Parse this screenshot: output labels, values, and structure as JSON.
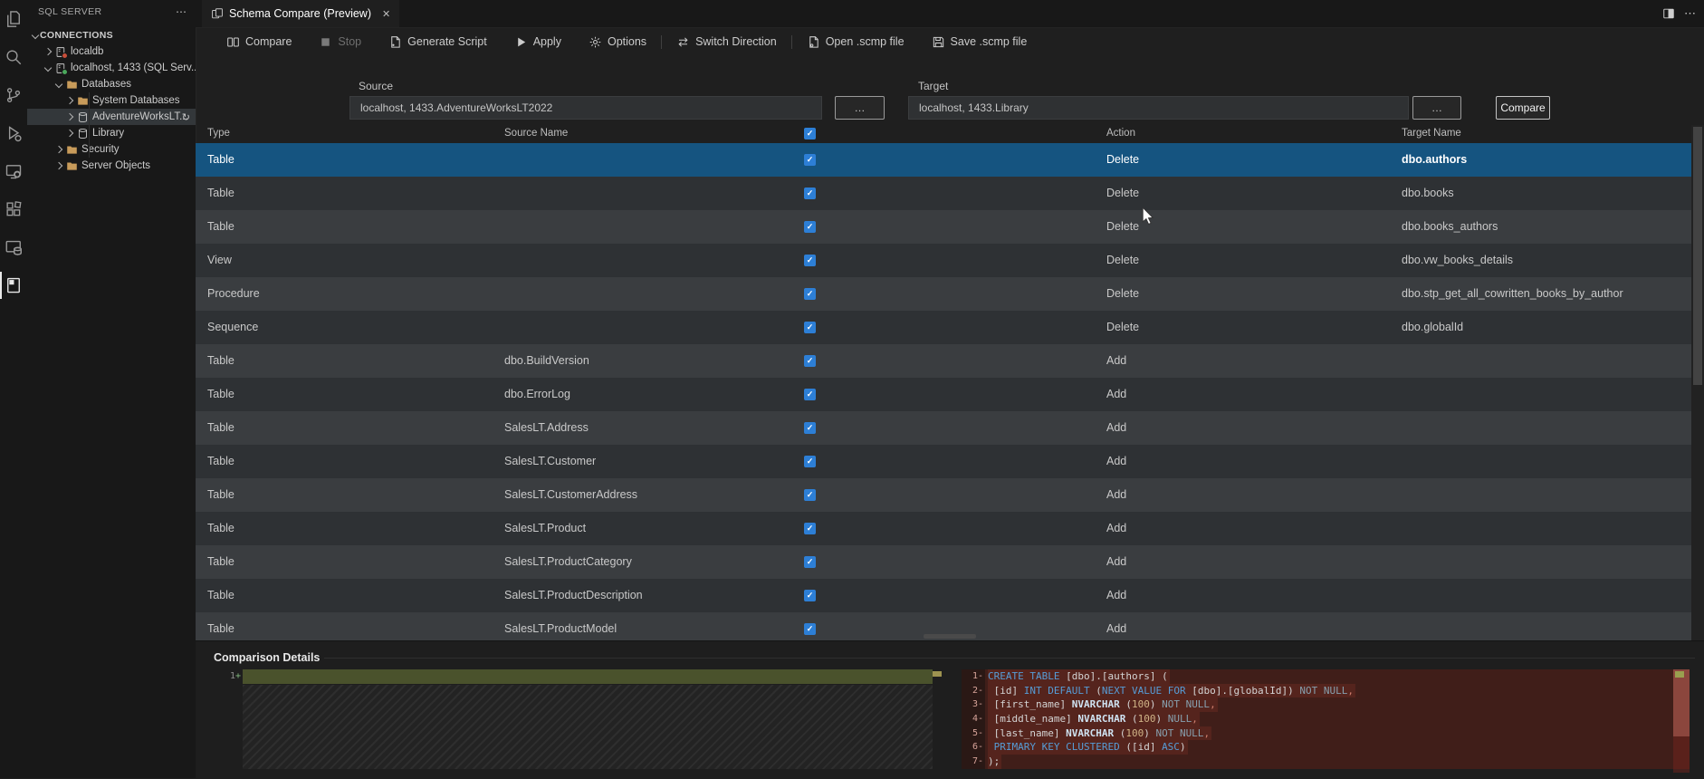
{
  "activity_bar": {
    "items": [
      {
        "icon": "explorer-icon",
        "active": false
      },
      {
        "icon": "search-icon",
        "active": false
      },
      {
        "icon": "source-control-icon",
        "active": false
      },
      {
        "icon": "run-debug-icon",
        "active": false
      },
      {
        "icon": "remote-explorer-icon",
        "active": false
      },
      {
        "icon": "extensions-icon",
        "active": false
      },
      {
        "icon": "mssql-icon",
        "active": false
      },
      {
        "icon": "database-projects-icon",
        "active": true
      }
    ]
  },
  "sidebar": {
    "title": "SQL SERVER",
    "more": "⋯",
    "tree": [
      {
        "kind": "section",
        "label": "CONNECTIONS",
        "chevron": "down"
      },
      {
        "level": 1,
        "chevron": "right",
        "icon": "server-icon",
        "badge": "#c84e3a",
        "label": "localdb"
      },
      {
        "level": 1,
        "chevron": "down",
        "icon": "server-icon",
        "badge": "#4aa85c",
        "label": "localhost, 1433 (SQL Serv..."
      },
      {
        "level": 2,
        "chevron": "down",
        "icon": "folder-icon",
        "label": "Databases"
      },
      {
        "level": 3,
        "chevron": "right",
        "icon": "folder-icon",
        "label": "System Databases"
      },
      {
        "level": 3,
        "chevron": "right",
        "icon": "database-icon",
        "label": "AdventureWorksLT...",
        "selected": true,
        "busy": "↻"
      },
      {
        "level": 3,
        "chevron": "right",
        "icon": "database-icon",
        "label": "Library"
      },
      {
        "level": 2,
        "chevron": "right",
        "icon": "folder-icon",
        "label": "Security"
      },
      {
        "level": 2,
        "chevron": "right",
        "icon": "folder-icon",
        "label": "Server Objects"
      }
    ]
  },
  "editor": {
    "tab": {
      "icon": "schema-compare-icon",
      "label": "Schema Compare (Preview)",
      "close": "✕"
    },
    "more": "⋯"
  },
  "toolbar": {
    "items": [
      {
        "icon": "compare-panes-icon",
        "label": "Compare"
      },
      {
        "icon": "stop-icon",
        "label": "Stop",
        "disabled": true
      },
      {
        "icon": "script-icon",
        "label": "Generate Script"
      },
      {
        "icon": "apply-icon",
        "label": "Apply"
      },
      {
        "icon": "options-icon",
        "label": "Options"
      },
      {
        "sep": true
      },
      {
        "icon": "switch-icon",
        "label": "Switch Direction"
      },
      {
        "sep": true
      },
      {
        "icon": "open-file-icon",
        "label": "Open .scmp file"
      },
      {
        "icon": "save-file-icon",
        "label": "Save .scmp file"
      }
    ]
  },
  "compare_setup": {
    "source_label": "Source",
    "source_value": "localhost, 1433.AdventureWorksLT2022",
    "target_label": "Target",
    "target_value": "localhost, 1433.Library",
    "browse_label": "…",
    "compare_button": "Compare"
  },
  "grid": {
    "columns": {
      "type": "Type",
      "source": "Source Name",
      "action": "Action",
      "target": "Target Name"
    },
    "header_checked": true,
    "rows": [
      {
        "type": "Table",
        "source": "",
        "checked": true,
        "action": "Delete",
        "target": "dbo.authors",
        "selected": true
      },
      {
        "type": "Table",
        "source": "",
        "checked": true,
        "action": "Delete",
        "target": "dbo.books"
      },
      {
        "type": "Table",
        "source": "",
        "checked": true,
        "action": "Delete",
        "target": "dbo.books_authors"
      },
      {
        "type": "View",
        "source": "",
        "checked": true,
        "action": "Delete",
        "target": "dbo.vw_books_details"
      },
      {
        "type": "Procedure",
        "source": "",
        "checked": true,
        "action": "Delete",
        "target": "dbo.stp_get_all_cowritten_books_by_author"
      },
      {
        "type": "Sequence",
        "source": "",
        "checked": true,
        "action": "Delete",
        "target": "dbo.globalId"
      },
      {
        "type": "Table",
        "source": "dbo.BuildVersion",
        "checked": true,
        "action": "Add",
        "target": ""
      },
      {
        "type": "Table",
        "source": "dbo.ErrorLog",
        "checked": true,
        "action": "Add",
        "target": ""
      },
      {
        "type": "Table",
        "source": "SalesLT.Address",
        "checked": true,
        "action": "Add",
        "target": ""
      },
      {
        "type": "Table",
        "source": "SalesLT.Customer",
        "checked": true,
        "action": "Add",
        "target": ""
      },
      {
        "type": "Table",
        "source": "SalesLT.CustomerAddress",
        "checked": true,
        "action": "Add",
        "target": ""
      },
      {
        "type": "Table",
        "source": "SalesLT.Product",
        "checked": true,
        "action": "Add",
        "target": ""
      },
      {
        "type": "Table",
        "source": "SalesLT.ProductCategory",
        "checked": true,
        "action": "Add",
        "target": ""
      },
      {
        "type": "Table",
        "source": "SalesLT.ProductDescription",
        "checked": true,
        "action": "Add",
        "target": ""
      },
      {
        "type": "Table",
        "source": "SalesLT.ProductModel",
        "checked": true,
        "action": "Add",
        "target": ""
      }
    ]
  },
  "details": {
    "title": "Comparison Details",
    "token_colors": {
      "kw": "#569cd6",
      "id": "#d4d4d4",
      "typ": "#cfe3f2",
      "num": "#d0b487",
      "dim": "#87a0ae",
      "pun": "#d07f6e"
    },
    "source_diff": {
      "lines": [
        {
          "num": "1",
          "sign": "+",
          "tokens": []
        }
      ]
    },
    "target_diff": {
      "lines": [
        {
          "num": "1",
          "sign": "-",
          "tokens": [
            [
              "kw",
              "CREATE TABLE"
            ],
            [
              "id",
              " [dbo].[authors] ("
            ]
          ]
        },
        {
          "num": "2",
          "sign": "-",
          "tokens": [
            [
              "id",
              " [id] "
            ],
            [
              "kw",
              "INT DEFAULT"
            ],
            [
              "id",
              " ("
            ],
            [
              "kw",
              "NEXT VALUE FOR"
            ],
            [
              "id",
              " [dbo].[globalId])"
            ],
            [
              "dim",
              " NOT NULL"
            ],
            [
              "pun",
              ","
            ]
          ]
        },
        {
          "num": "3",
          "sign": "-",
          "tokens": [
            [
              "id",
              " [first_name] "
            ],
            [
              "typ",
              "NVARCHAR"
            ],
            [
              "id",
              " ("
            ],
            [
              "num",
              "100"
            ],
            [
              "id",
              ")"
            ],
            [
              "dim",
              " NOT NULL"
            ],
            [
              "pun",
              ","
            ]
          ]
        },
        {
          "num": "4",
          "sign": "-",
          "tokens": [
            [
              "id",
              " [middle_name] "
            ],
            [
              "typ",
              "NVARCHAR"
            ],
            [
              "id",
              " ("
            ],
            [
              "num",
              "100"
            ],
            [
              "id",
              ")"
            ],
            [
              "dim",
              " NULL"
            ],
            [
              "pun",
              ","
            ]
          ]
        },
        {
          "num": "5",
          "sign": "-",
          "tokens": [
            [
              "id",
              " [last_name] "
            ],
            [
              "typ",
              "NVARCHAR"
            ],
            [
              "id",
              " ("
            ],
            [
              "num",
              "100"
            ],
            [
              "id",
              ")"
            ],
            [
              "dim",
              " NOT NULL"
            ],
            [
              "pun",
              ","
            ]
          ]
        },
        {
          "num": "6",
          "sign": "-",
          "tokens": [
            [
              "kw",
              " PRIMARY KEY CLUSTERED"
            ],
            [
              "id",
              " ([id] "
            ],
            [
              "kw",
              "ASC"
            ],
            [
              "id",
              ")"
            ]
          ]
        },
        {
          "num": "7",
          "sign": "-",
          "tokens": [
            [
              "id",
              ");"
            ]
          ]
        }
      ]
    }
  }
}
